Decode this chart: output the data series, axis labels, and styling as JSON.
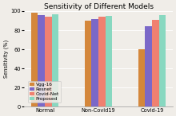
{
  "title": "Sensitivity of Different Models",
  "categories": [
    "Normal",
    "Non-Covid19",
    "Covid-19"
  ],
  "models": [
    "Vgg-16",
    "Resnet",
    "Covid-Net",
    "Proposed"
  ],
  "values": {
    "Vgg-16": [
      98,
      90,
      60
    ],
    "Resnet": [
      96,
      92,
      84
    ],
    "Covid-Net": [
      94,
      94,
      91
    ],
    "Proposed": [
      97,
      95,
      96
    ]
  },
  "colors": {
    "Vgg-16": "#D4873B",
    "Resnet": "#7B68C8",
    "Covid-Net": "#F08070",
    "Proposed": "#88D8C0"
  },
  "ylabel": "Sensitivity (%)",
  "ylim": [
    0,
    100
  ],
  "bar_width": 0.13,
  "title_fontsize": 6.5,
  "label_fontsize": 4.8,
  "tick_fontsize": 4.8,
  "legend_fontsize": 4.2,
  "background_color": "#f0ede8"
}
